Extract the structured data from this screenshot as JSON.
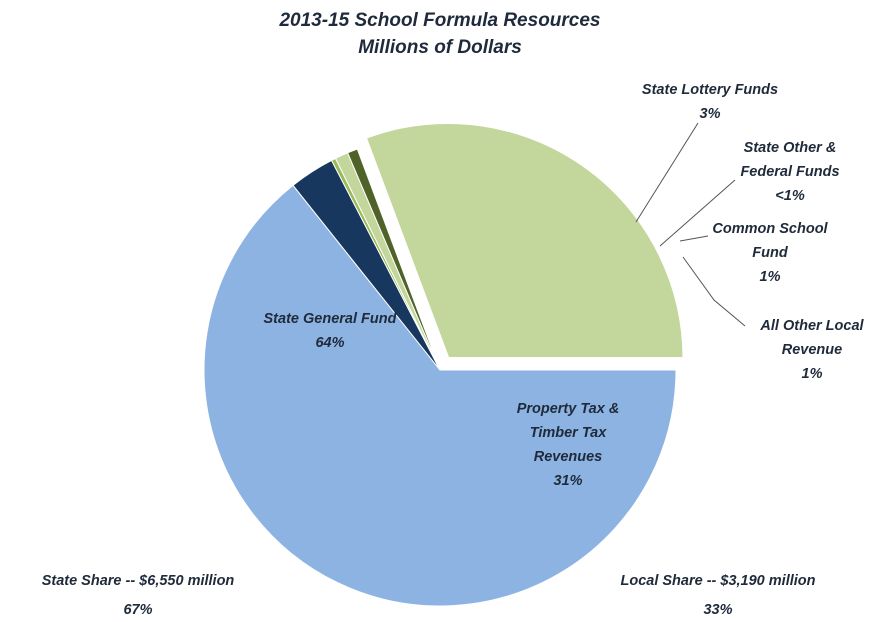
{
  "chart_data": {
    "type": "pie",
    "title": "2013-15 School Formula Resources",
    "subtitle": "Millions of Dollars",
    "slices": [
      {
        "key": "state-general-fund",
        "lines": [
          "State General Fund",
          "64%"
        ],
        "value": 64.3,
        "color": "#8db3e2",
        "exploded": false
      },
      {
        "key": "state-lottery-funds",
        "lines": [
          "State Lottery Funds",
          "3%"
        ],
        "value": 3.1,
        "color": "#17375e",
        "exploded": false
      },
      {
        "key": "state-other-federal",
        "lines": [
          "State Other &",
          "Federal Funds",
          "<1%"
        ],
        "value": 0.3,
        "color": "#9bbb59",
        "exploded": false
      },
      {
        "key": "common-school-fund",
        "lines": [
          "Common School",
          "Fund",
          "1%"
        ],
        "value": 0.9,
        "color": "#c3d69b",
        "exploded": false
      },
      {
        "key": "all-other-local",
        "lines": [
          "All Other Local",
          "Revenue",
          "1%"
        ],
        "value": 0.7,
        "color": "#4f6228",
        "exploded": false
      },
      {
        "key": "property-timber-tax",
        "lines": [
          "Property Tax  &",
          "Timber Tax",
          "Revenues",
          "31%"
        ],
        "value": 30.7,
        "color": "#c3d69b",
        "exploded": true
      }
    ],
    "annotations": [
      {
        "key": "state-share",
        "lines": [
          "State Share -- $6,550 million",
          "67%"
        ]
      },
      {
        "key": "local-share",
        "lines": [
          "Local Share -- $3,190 million",
          "33%"
        ]
      }
    ]
  }
}
